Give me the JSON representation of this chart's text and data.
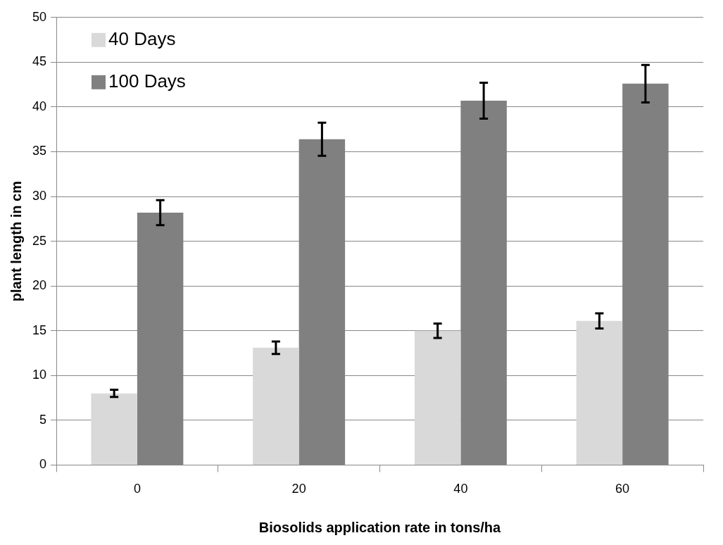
{
  "chart_data": {
    "type": "bar",
    "xlabel": "Biosolids application rate in tons/ha",
    "ylabel": "plant length in cm",
    "categories": [
      "0",
      "20",
      "40",
      "60"
    ],
    "series": [
      {
        "name": "40 Days",
        "color": "#d9d9d9",
        "values": [
          8.0,
          13.1,
          15.0,
          16.1
        ],
        "errors": [
          0.4,
          0.7,
          0.8,
          0.85
        ]
      },
      {
        "name": "100 Days",
        "color": "#808080",
        "values": [
          28.2,
          36.4,
          40.7,
          42.6
        ],
        "errors": [
          1.4,
          1.85,
          2.0,
          2.1
        ]
      }
    ],
    "ylim": [
      0,
      50
    ],
    "yticks": [
      0,
      5,
      10,
      15,
      20,
      25,
      30,
      35,
      40,
      45,
      50
    ],
    "grid": "y",
    "legend": "top left"
  }
}
